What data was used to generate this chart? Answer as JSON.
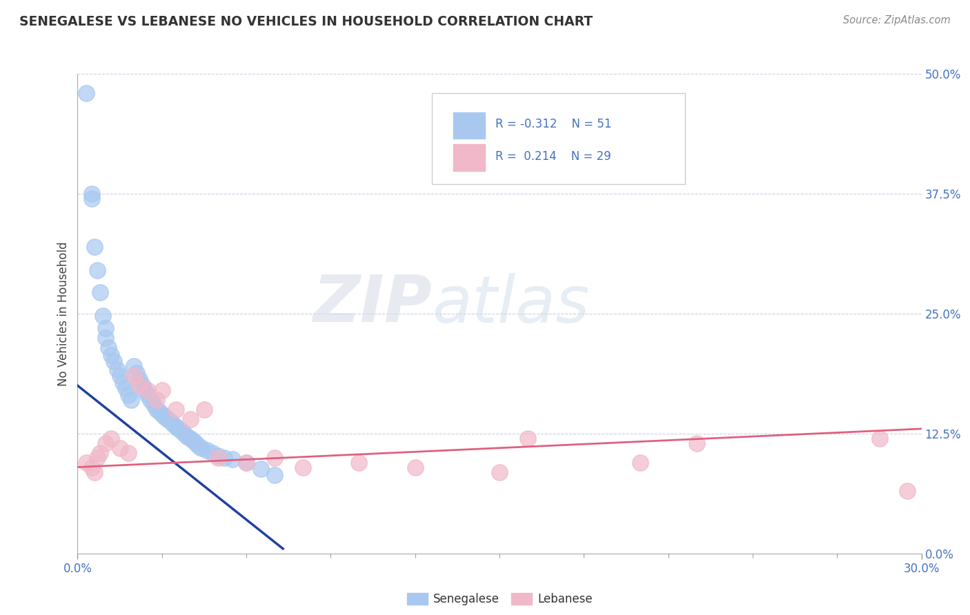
{
  "title": "SENEGALESE VS LEBANESE NO VEHICLES IN HOUSEHOLD CORRELATION CHART",
  "source": "Source: ZipAtlas.com",
  "ylabel": "No Vehicles in Household",
  "xlim": [
    0.0,
    0.3
  ],
  "ylim": [
    0.0,
    0.5
  ],
  "ytick_labels": [
    "0.0%",
    "12.5%",
    "25.0%",
    "37.5%",
    "50.0%"
  ],
  "ytick_values": [
    0.0,
    0.125,
    0.25,
    0.375,
    0.5
  ],
  "xtick_values": [
    0.0,
    0.3
  ],
  "xtick_labels": [
    "0.0%",
    "30.0%"
  ],
  "senegalese_color": "#a8c8f0",
  "lebanese_color": "#f0b8c8",
  "senegalese_line_color": "#2040a0",
  "lebanese_line_color": "#e06080",
  "watermark_zip": "ZIP",
  "watermark_atlas": "atlas",
  "background_color": "#ffffff",
  "senegalese_x": [
    0.003,
    0.005,
    0.005,
    0.006,
    0.007,
    0.008,
    0.009,
    0.01,
    0.01,
    0.011,
    0.012,
    0.013,
    0.014,
    0.015,
    0.016,
    0.017,
    0.018,
    0.019,
    0.02,
    0.021,
    0.022,
    0.023,
    0.024,
    0.025,
    0.026,
    0.027,
    0.028,
    0.029,
    0.03,
    0.031,
    0.032,
    0.033,
    0.034,
    0.035,
    0.036,
    0.037,
    0.038,
    0.039,
    0.04,
    0.041,
    0.042,
    0.043,
    0.044,
    0.046,
    0.048,
    0.05,
    0.052,
    0.055,
    0.06,
    0.065,
    0.07
  ],
  "senegalese_y": [
    0.48,
    0.375,
    0.37,
    0.32,
    0.295,
    0.272,
    0.248,
    0.235,
    0.225,
    0.215,
    0.207,
    0.2,
    0.192,
    0.185,
    0.178,
    0.172,
    0.165,
    0.16,
    0.195,
    0.188,
    0.182,
    0.176,
    0.17,
    0.165,
    0.16,
    0.155,
    0.15,
    0.148,
    0.145,
    0.142,
    0.14,
    0.138,
    0.135,
    0.132,
    0.13,
    0.128,
    0.125,
    0.122,
    0.12,
    0.118,
    0.115,
    0.112,
    0.11,
    0.108,
    0.105,
    0.102,
    0.1,
    0.098,
    0.095,
    0.088,
    0.082
  ],
  "lebanese_x": [
    0.003,
    0.005,
    0.006,
    0.007,
    0.008,
    0.01,
    0.012,
    0.015,
    0.018,
    0.02,
    0.022,
    0.025,
    0.028,
    0.03,
    0.035,
    0.04,
    0.045,
    0.05,
    0.06,
    0.07,
    0.08,
    0.1,
    0.12,
    0.15,
    0.16,
    0.2,
    0.22,
    0.285,
    0.295
  ],
  "lebanese_y": [
    0.095,
    0.09,
    0.085,
    0.1,
    0.105,
    0.115,
    0.12,
    0.11,
    0.105,
    0.185,
    0.175,
    0.17,
    0.16,
    0.17,
    0.15,
    0.14,
    0.15,
    0.1,
    0.095,
    0.1,
    0.09,
    0.095,
    0.09,
    0.085,
    0.12,
    0.095,
    0.115,
    0.12,
    0.065
  ],
  "sen_line_x0": 0.0,
  "sen_line_x1": 0.073,
  "sen_line_y0": 0.175,
  "sen_line_y1": 0.005,
  "leb_line_x0": 0.0,
  "leb_line_x1": 0.3,
  "leb_line_y0": 0.09,
  "leb_line_y1": 0.13
}
